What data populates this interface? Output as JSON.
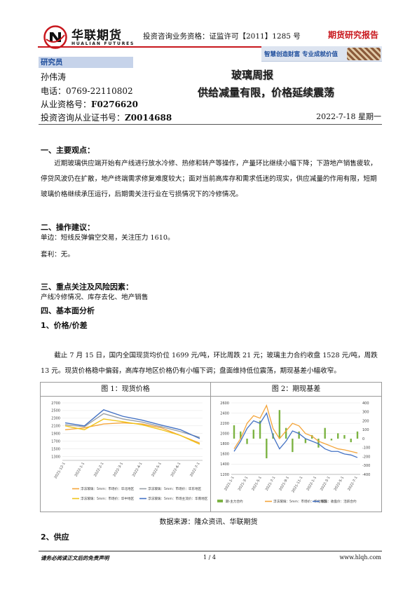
{
  "header": {
    "company_cn": "华联期货",
    "company_en": "HUALIAN FUTURES",
    "license": "投资咨询业务资格：证监许可【2011】1285 号",
    "report_type": "期货研究报告",
    "banner_text": "智慧创造财富  专业成就价值",
    "brand_color": "#c8171d",
    "logo_icon": "hualian-logo-icon"
  },
  "analyst": {
    "label": "研究员",
    "name": "孙伟涛",
    "phone": "电话：0769-22110802",
    "qual_label": "从业资格号：",
    "qual_no": "F0276620",
    "consult_label": "投资咨询从业证书号：",
    "consult_no": "Z0014688"
  },
  "doc": {
    "title": "玻璃周报",
    "subtitle": "供给减量有限，价格延续震荡",
    "date": "2022-7-18  星期一"
  },
  "sections": {
    "s1_title": "一、主要观点：",
    "s1_body": "近期玻璃供应端开始有产线进行放水冷修、热修和转产等操作，产量环比继续小幅下降；下游地产销售疲软，停贷风波仍在扩散，地产终端需求修复难度较大；面对当前高库存和需求低迷的现实，供应减量的作用有限，短期玻璃价格继续承压运行，后期需关注行业在亏损情况下的冷修情况。",
    "s2_title": "二、操作建议：",
    "s2_line1": "单边：短线反弹偏空交易，关注压力 1610。",
    "s2_line2": "套利：无。",
    "s3_title": "三、重点关注及风险因素：",
    "s3_body": "产线冷修情况、库存去化、地产销售",
    "s4_title": "四、基本面分析",
    "s4_sub1": "1、价格/价差",
    "s4_body": "截止 7 月 15 日，国内全国现货均价位 1699 元/吨，环比周跌 21 元；玻璃主力合约收盘 1528 元/吨，周跌 13 元。现货价格稳中偏弱，高库存地区价格仍有小幅下调；盘面维持低位震荡，期现基差小幅收窄。",
    "s4_sub2": "2、供应"
  },
  "figures": {
    "fig1_caption": "图 1：现货价格",
    "fig2_caption": "图 2：期现基差",
    "source": "数据来源：隆众资讯、华联期货"
  },
  "chart_data": [
    {
      "type": "line",
      "ylim": [
        1200,
        2700
      ],
      "yticks": [
        "2700",
        "2500",
        "2300",
        "2100",
        "1900",
        "1700",
        "1500",
        "1300"
      ],
      "x": [
        "2021-12-1",
        "2022-1-1",
        "2022-2-1",
        "2022-3-1",
        "2022-4-1",
        "2022-5-1",
        "2022-6-1",
        "2022-7-1"
      ],
      "series": [
        {
          "name": "浮法玻璃：5mm：市场价：华北地区",
          "color": "#f4a53b",
          "values": [
            2000,
            2050,
            2150,
            2180,
            2150,
            2050,
            1850,
            1650
          ]
        },
        {
          "name": "浮法玻璃：5mm：市场价：华东地区",
          "color": "#9aa0a6",
          "values": [
            2130,
            2080,
            2420,
            2280,
            2200,
            2080,
            1950,
            1800
          ]
        },
        {
          "name": "浮法玻璃：5mm：市场价：华中地区",
          "color": "#f0c419",
          "values": [
            2100,
            2000,
            2280,
            2210,
            2130,
            2000,
            1850,
            1620
          ]
        },
        {
          "name": "浮法玻璃：5mm：市场主流价：华南地区",
          "color": "#4472c4",
          "values": [
            2180,
            2100,
            2520,
            2350,
            2250,
            2120,
            2000,
            1770
          ]
        }
      ],
      "x_tick_labels": [
        "2021-12-1",
        "2022-1-1",
        "2022-2-1",
        "2022-3-1",
        "2022-4-1",
        "2022-5-1",
        "2022-6-1",
        "2022-7-1"
      ]
    },
    {
      "type": "line",
      "ylim": [
        1200,
        2600
      ],
      "y2lim": [
        -400,
        400
      ],
      "yticks": [
        "2600",
        "2400",
        "2200",
        "2000",
        "1800",
        "1600",
        "1400",
        "1200"
      ],
      "y2ticks": [
        "400",
        "300",
        "200",
        "100",
        "0",
        "-100",
        "-200",
        "-300",
        "-400"
      ],
      "x_tick_labels": [
        "2021-1-1",
        "2021-3-1",
        "2021-5-1",
        "2021-7-1",
        "2021-9-1",
        "2021-11-1",
        "2022-1-1",
        "2022-3-1",
        "2022-5-1",
        "2022-7-1"
      ],
      "series": [
        {
          "name": "期-主力合约",
          "color": "#7cb342",
          "axis": "right",
          "kind": "bar",
          "values": [
            150,
            80,
            -60,
            100,
            200,
            -220,
            60,
            320,
            120,
            -150,
            80,
            -50,
            40,
            -100,
            120,
            -20,
            60,
            40,
            -40,
            80
          ]
        },
        {
          "name": "浮法玻璃：5mm：市场价：华北地区",
          "color": "#f4a53b",
          "axis": "left",
          "values": [
            1700,
            1900,
            2200,
            2350,
            2300,
            2550,
            2100,
            1900,
            2050,
            2200,
            2150,
            2000,
            1950,
            1850,
            1800,
            1750,
            1700,
            1680,
            1650,
            1620
          ]
        },
        {
          "name": "玻璃：收盘价：活跃合约",
          "color": "#4472c4",
          "axis": "left",
          "values": [
            1650,
            1850,
            2100,
            2250,
            2200,
            2400,
            1950,
            1700,
            1850,
            2050,
            2000,
            1900,
            1850,
            1800,
            1700,
            1650,
            1650,
            1600,
            1580,
            1530
          ]
        }
      ]
    }
  ]
}
